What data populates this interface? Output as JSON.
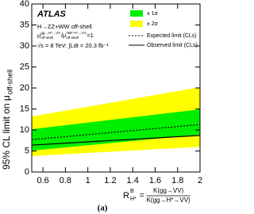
{
  "chart_data": {
    "type": "line",
    "experiment": "ATLAS",
    "process": "H→ZZ+WW off-shell",
    "ratio_text": [
      "μ",
      "gg→H*→VV",
      "off-shell",
      "/μ",
      "VBF H*→VV",
      "off-shell",
      "=1"
    ],
    "energy": "√s = 8 TeV: ∫Ldt = 20.3 fb⁻¹",
    "ylabel": {
      "main": "95% CL limit on μ",
      "sub": "off-shell"
    },
    "xlabel": {
      "main": "R",
      "sup": "B",
      "sub": "H*",
      "eq": "=",
      "num": "K(gg→VV)",
      "den": "K(gg→H*→VV)"
    },
    "panel": "(a)",
    "x": [
      0.5,
      2
    ],
    "series": [
      {
        "name": "± 1σ",
        "kind": "band",
        "color": "#00ee00",
        "lower": [
          5.1,
          8.9
        ],
        "upper": [
          10.2,
          14.9
        ]
      },
      {
        "name": "± 2σ",
        "kind": "band",
        "color": "#ffff00",
        "lower": [
          3.8,
          6.0
        ],
        "upper": [
          13.2,
          20.2
        ]
      },
      {
        "name": "Expected limit (CLs)",
        "kind": "line",
        "style": "dashed",
        "color": "#000000",
        "values": [
          7.7,
          11.3
        ]
      },
      {
        "name": "Observed limit (CLs)",
        "kind": "line",
        "style": "solid",
        "color": "#000000",
        "values": [
          6.4,
          8.7
        ]
      }
    ],
    "xlim": [
      0.5,
      2
    ],
    "xticks": [
      0.6,
      0.8,
      1,
      1.2,
      1.4,
      1.6,
      1.8,
      2
    ],
    "ylim": [
      0,
      40
    ],
    "yticks": [
      0,
      5,
      10,
      15,
      20,
      25,
      30,
      35,
      40
    ]
  }
}
